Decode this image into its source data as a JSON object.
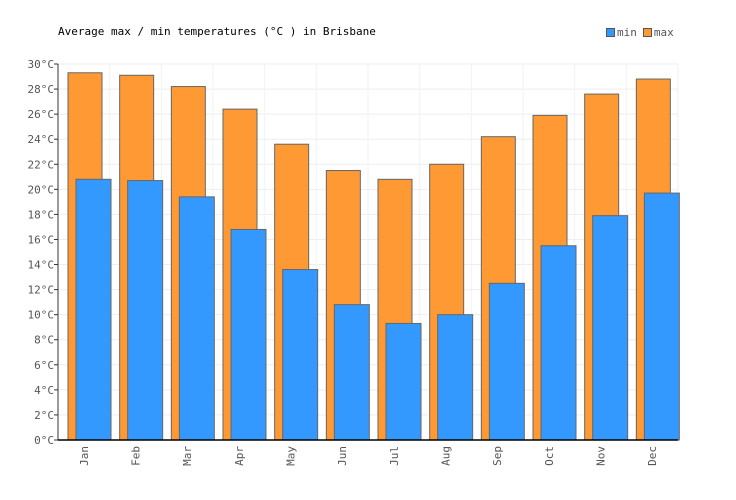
{
  "chart_data": {
    "type": "bar",
    "title": "Average max / min temperatures (°C ) in Brisbane",
    "categories": [
      "Jan",
      "Feb",
      "Mar",
      "Apr",
      "May",
      "Jun",
      "Jul",
      "Aug",
      "Sep",
      "Oct",
      "Nov",
      "Dec"
    ],
    "series": [
      {
        "name": "min",
        "color": "#3399ff",
        "values": [
          20.8,
          20.7,
          19.4,
          16.8,
          13.6,
          10.8,
          9.3,
          10.0,
          12.5,
          15.5,
          17.9,
          19.7
        ]
      },
      {
        "name": "max",
        "color": "#ff9933",
        "values": [
          29.3,
          29.1,
          28.2,
          26.4,
          23.6,
          21.5,
          20.8,
          22.0,
          24.2,
          25.9,
          27.6,
          28.8
        ]
      }
    ],
    "y_ticks": [
      "0°C",
      "2°C",
      "4°C",
      "6°C",
      "8°C",
      "10°C",
      "12°C",
      "14°C",
      "16°C",
      "18°C",
      "20°C",
      "22°C",
      "24°C",
      "26°C",
      "28°C",
      "30°C"
    ],
    "ylim": [
      0,
      30
    ],
    "xlabel": "",
    "ylabel": "",
    "grid": true,
    "legend_position": "top-right"
  }
}
